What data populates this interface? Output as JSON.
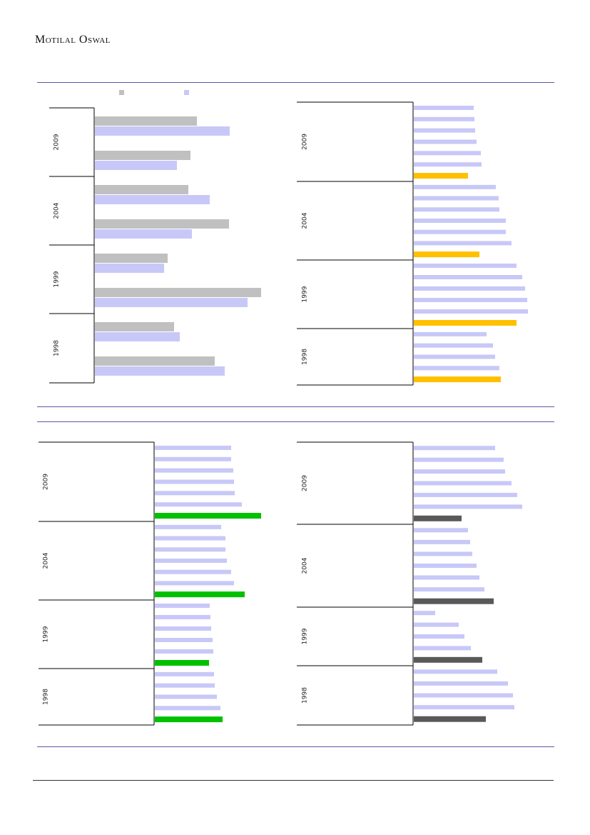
{
  "header": {
    "logo_text": "Motilal Oswal"
  },
  "colors": {
    "grey_series": "#c0c0c0",
    "lavender_series": "#c8c8f8",
    "orange_highlight": "#ffc000",
    "green_highlight": "#00c000",
    "dark_highlight": "#595959",
    "frame": "#000000",
    "rule": "#5a5aa8"
  },
  "chart_data": [
    {
      "type": "bar",
      "orientation": "horizontal",
      "legend": {
        "placement": "top",
        "entries": [
          "",
          ""
        ]
      },
      "groups": [
        {
          "label": "2009",
          "pairs": [
            [
              143,
              189
            ],
            [
              134,
              115
            ]
          ]
        },
        {
          "label": "2004",
          "pairs": [
            [
              131,
              161
            ],
            [
              188,
              136
            ]
          ]
        },
        {
          "label": "1999",
          "pairs": [
            [
              102,
              97
            ],
            [
              233,
              214
            ]
          ]
        },
        {
          "label": "1998",
          "pairs": [
            [
              111,
              119
            ],
            [
              168,
              182
            ]
          ]
        }
      ]
    },
    {
      "type": "bar",
      "orientation": "horizontal",
      "highlight": "last-bar-per-group",
      "groups": [
        {
          "label": "2009",
          "values": [
            84,
            85,
            86,
            88,
            94,
            95,
            76
          ]
        },
        {
          "label": "2004",
          "values": [
            115,
            119,
            120,
            129,
            129,
            137,
            92
          ]
        },
        {
          "label": "1999",
          "values": [
            144,
            152,
            156,
            159,
            160,
            144
          ]
        },
        {
          "label": "1998",
          "values": [
            102,
            111,
            114,
            120,
            122
          ]
        }
      ]
    },
    {
      "type": "bar",
      "orientation": "horizontal",
      "highlight": "last-bar-per-group",
      "groups": [
        {
          "label": "2009",
          "values": [
            107,
            107,
            110,
            111,
            112,
            122,
            149
          ]
        },
        {
          "label": "2004",
          "values": [
            93,
            99,
            99,
            101,
            107,
            111,
            126
          ]
        },
        {
          "label": "1999",
          "values": [
            77,
            78,
            79,
            81,
            82,
            76
          ]
        },
        {
          "label": "1998",
          "values": [
            83,
            84,
            87,
            92,
            95
          ]
        }
      ]
    },
    {
      "type": "bar",
      "orientation": "horizontal",
      "highlight": "last-bar-per-group",
      "groups": [
        {
          "label": "2009",
          "values": [
            114,
            126,
            128,
            137,
            145,
            152,
            67
          ]
        },
        {
          "label": "2004",
          "values": [
            76,
            79,
            82,
            88,
            92,
            99,
            112
          ]
        },
        {
          "label": "1999",
          "values": [
            30,
            63,
            71,
            80,
            96
          ]
        },
        {
          "label": "1998",
          "values": [
            117,
            132,
            139,
            141,
            101
          ]
        }
      ]
    }
  ]
}
